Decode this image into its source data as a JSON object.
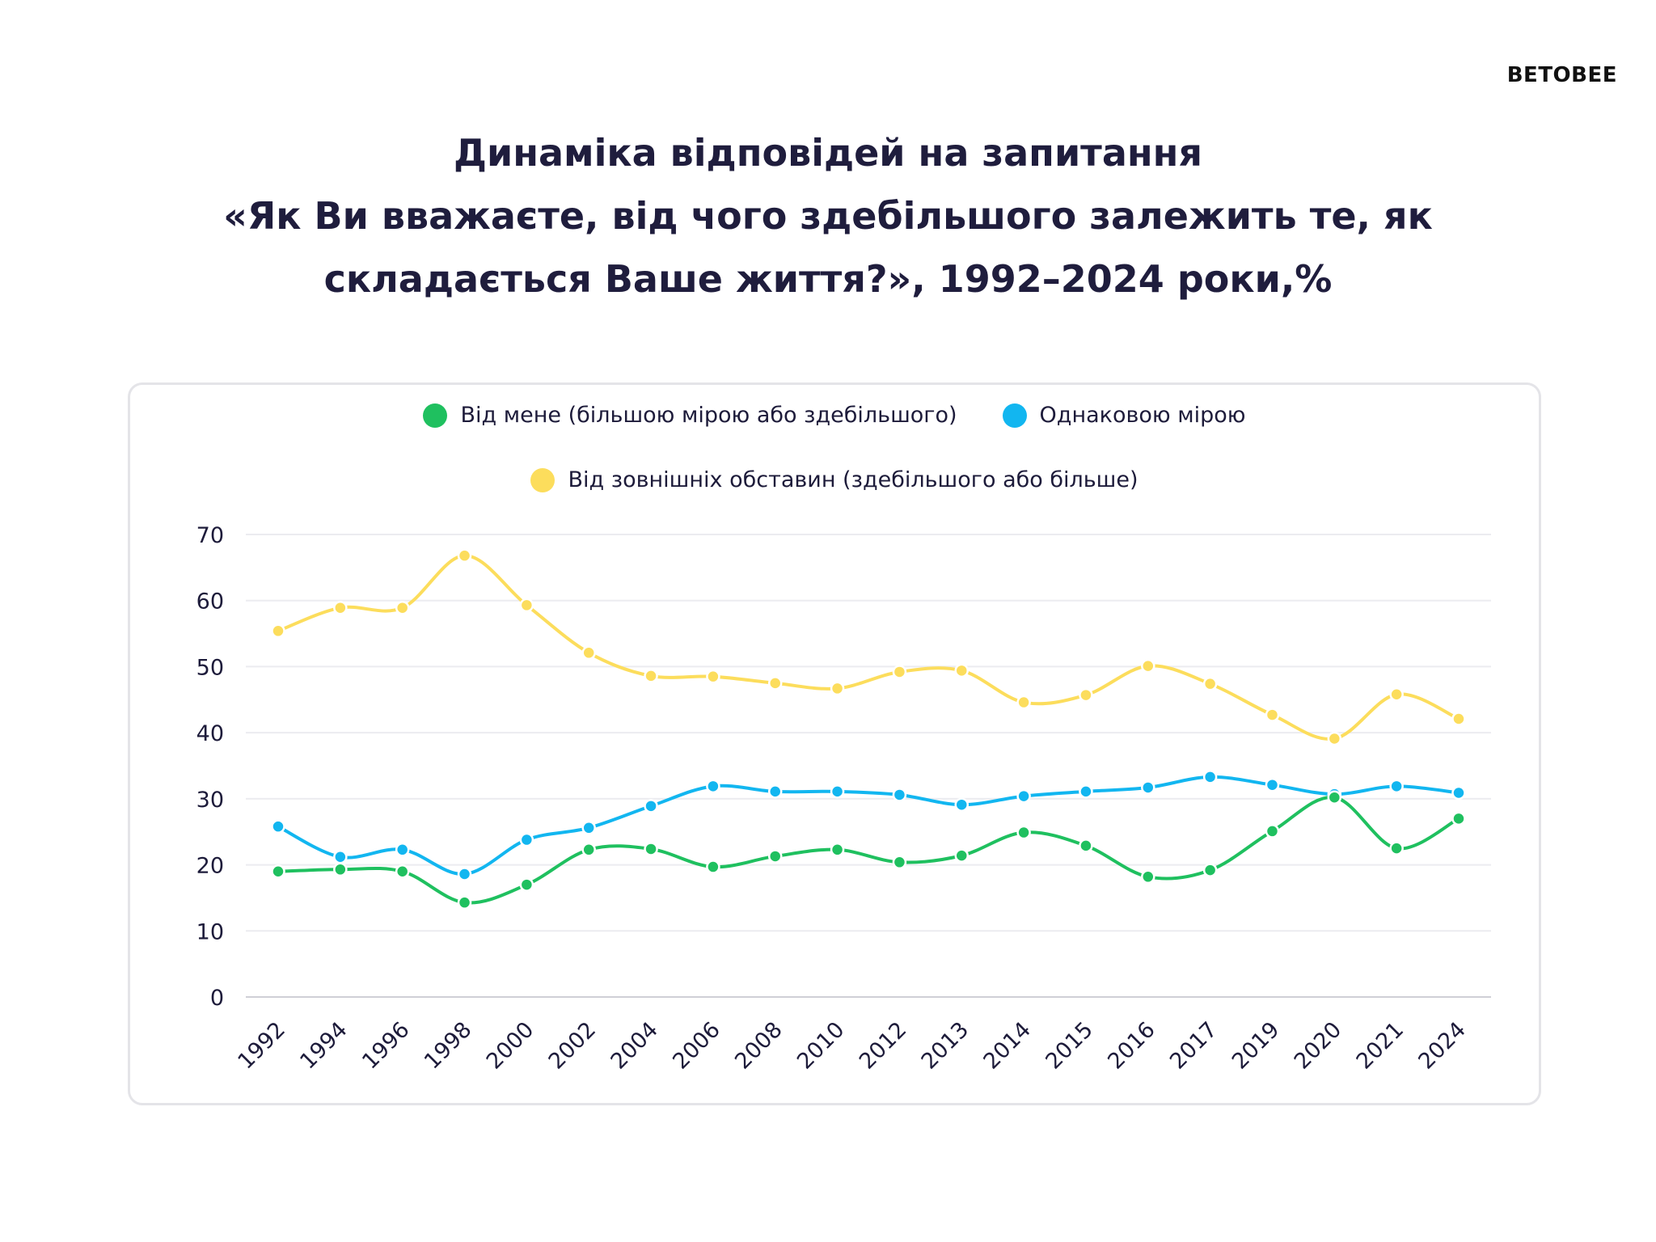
{
  "brand": {
    "logo_text": "BETOBEE"
  },
  "header": {
    "title_lines": [
      "Динаміка відповідей на запитання",
      "«Як Ви вважаєте, від чого здебільшого залежить те, як",
      "складається Ваше життя?», 1992–2024 роки,%"
    ]
  },
  "chart_data": {
    "type": "line",
    "title": "Динаміка відповідей на запитання «Як Ви вважаєте, від чого здебільшого залежить те, як складається Ваше життя?», 1992–2024 роки,%",
    "xlabel": "",
    "ylabel": "",
    "ylim": [
      0,
      70
    ],
    "yticks": [
      0,
      10,
      20,
      30,
      40,
      50,
      60,
      70
    ],
    "grid": true,
    "legend_position": "top",
    "categories": [
      "1992",
      "1994",
      "1996",
      "1998",
      "2000",
      "2002",
      "2004",
      "2006",
      "2008",
      "2010",
      "2012",
      "2013",
      "2014",
      "2015",
      "2016",
      "2017",
      "2019",
      "2020",
      "2021",
      "2024"
    ],
    "series": [
      {
        "name": "Від мене (більшою мірою або здебільшого)",
        "color": "#1fc05f",
        "values": [
          19.0,
          19.3,
          19.0,
          14.3,
          17.0,
          22.3,
          22.4,
          19.7,
          21.3,
          22.3,
          20.4,
          21.4,
          24.9,
          22.9,
          18.2,
          19.2,
          25.1,
          30.2,
          22.5,
          27.0
        ]
      },
      {
        "name": "Однаковою мірою",
        "color": "#12b6f0",
        "values": [
          25.8,
          21.2,
          22.3,
          18.6,
          23.8,
          25.6,
          28.9,
          31.9,
          31.1,
          31.1,
          30.6,
          29.1,
          30.4,
          31.1,
          31.7,
          33.3,
          32.1,
          30.7,
          31.9,
          30.9
        ]
      },
      {
        "name": "Від зовнішніх обставин (здебільшого або більше)",
        "color": "#fcdd5c",
        "values": [
          55.4,
          58.9,
          58.9,
          66.8,
          59.3,
          52.1,
          48.6,
          48.5,
          47.5,
          46.7,
          49.2,
          49.4,
          44.6,
          45.7,
          50.1,
          47.4,
          42.7,
          39.1,
          45.8,
          42.1
        ]
      }
    ]
  }
}
